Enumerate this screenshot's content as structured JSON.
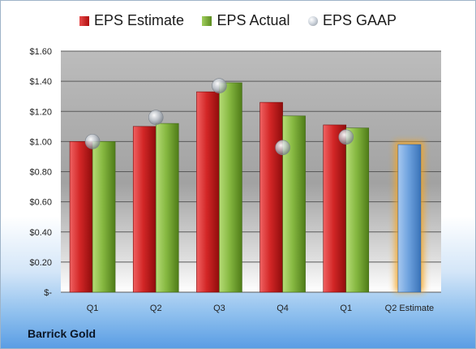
{
  "legend": {
    "estimate_label": "EPS Estimate",
    "actual_label": "EPS Actual",
    "gaap_label": "EPS GAAP"
  },
  "company": "Barrick Gold",
  "colors": {
    "estimate": "#c81e1e",
    "actual": "#79ad36",
    "gaap": "#a9b0b8",
    "projected_estimate": "#5b95d6",
    "projected_glow": "#f6a623"
  },
  "chart_data": {
    "type": "bar",
    "categories": [
      "Q1",
      "Q2",
      "Q3",
      "Q4",
      "Q1",
      "Q2 Estimate"
    ],
    "series": [
      {
        "name": "EPS Estimate",
        "values": [
          1.0,
          1.1,
          1.33,
          1.26,
          1.11,
          0.98
        ]
      },
      {
        "name": "EPS Actual",
        "values": [
          1.0,
          1.12,
          1.39,
          1.17,
          1.09,
          null
        ]
      },
      {
        "name": "EPS GAAP",
        "values": [
          1.0,
          1.16,
          1.37,
          0.96,
          1.03,
          null
        ]
      }
    ],
    "ylim": [
      0,
      1.6
    ],
    "yticks": [
      0,
      0.2,
      0.4,
      0.6,
      0.8,
      1.0,
      1.2,
      1.4,
      1.6
    ],
    "ytick_labels": [
      "$-",
      "$0.20",
      "$0.40",
      "$0.60",
      "$0.80",
      "$1.00",
      "$1.20",
      "$1.40",
      "$1.60"
    ],
    "grid": true,
    "legend_position": "top"
  }
}
